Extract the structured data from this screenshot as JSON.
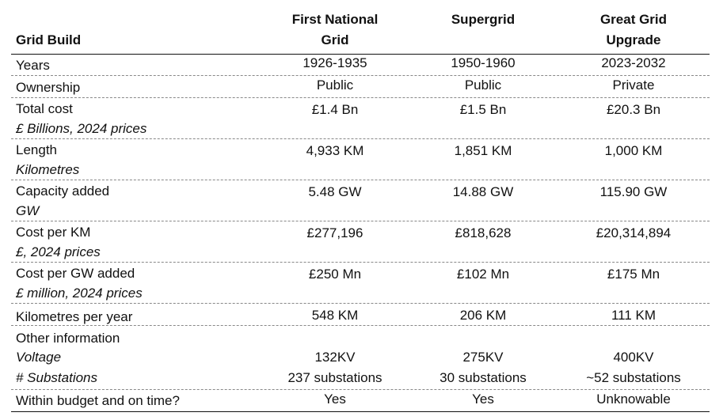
{
  "chart_data": {
    "type": "table",
    "corner_label": "Grid Build",
    "columns": [
      "First National Grid",
      "Supergrid",
      "Great Grid Upgrade"
    ],
    "rows": [
      {
        "label": "Years",
        "sub": "",
        "values": [
          "1926-1935",
          "1950-1960",
          "2023-2032"
        ]
      },
      {
        "label": "Ownership",
        "sub": "",
        "values": [
          "Public",
          "Public",
          "Private"
        ]
      },
      {
        "label": "Total cost",
        "sub": "£ Billions, 2024 prices",
        "values": [
          "£1.4 Bn",
          "£1.5 Bn",
          "£20.3 Bn"
        ]
      },
      {
        "label": "Length",
        "sub": "Kilometres",
        "values": [
          "4,933 KM",
          "1,851 KM",
          "1,000 KM"
        ]
      },
      {
        "label": "Capacity added",
        "sub": "GW",
        "values": [
          "5.48 GW",
          "14.88 GW",
          "115.90 GW"
        ]
      },
      {
        "label": "Cost per KM",
        "sub": "£, 2024 prices",
        "values": [
          "£277,196",
          "£818,628",
          "£20,314,894"
        ]
      },
      {
        "label": "Cost per GW added",
        "sub": "£ million, 2024 prices",
        "values": [
          "£250 Mn",
          "£102 Mn",
          "£175 Mn"
        ]
      },
      {
        "label": "Kilometres per year",
        "sub": "",
        "values": [
          "548 KM",
          "206 KM",
          "111 KM"
        ]
      },
      {
        "label": "Other information",
        "sub": "",
        "values": [
          "",
          "",
          ""
        ]
      },
      {
        "label": "",
        "sub": "Voltage",
        "values": [
          "132KV",
          "275KV",
          "400KV"
        ]
      },
      {
        "label": "",
        "sub": "# Substations",
        "values": [
          "237 substations",
          "30 substations",
          "~52 substations"
        ]
      },
      {
        "label": "Within budget and on time?",
        "sub": "",
        "values": [
          "Yes",
          "Yes",
          "Unknowable"
        ]
      }
    ]
  }
}
